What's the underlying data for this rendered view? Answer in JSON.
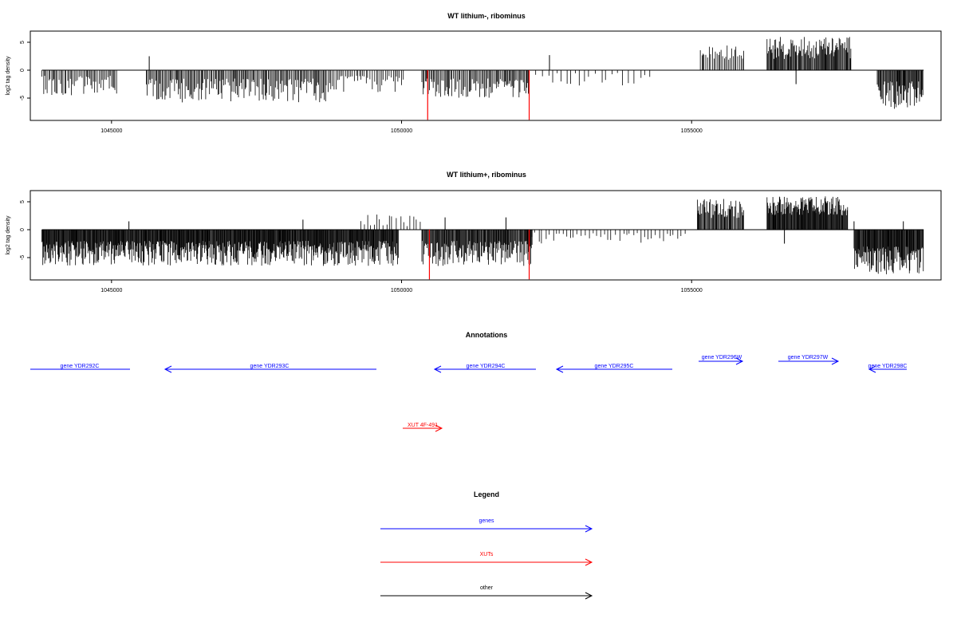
{
  "chart_data": [
    {
      "type": "bar",
      "title": "WT lithium-, ribominus",
      "ylabel": "log2 tag density",
      "xlim": [
        1043600,
        1059300
      ],
      "ylim": [
        -9,
        7
      ],
      "x_ticks": [
        {
          "value": 1045000,
          "label": "1045000"
        },
        {
          "value": 1050000,
          "label": "1050000"
        },
        {
          "value": 1055000,
          "label": "1055000"
        }
      ],
      "y_ticks": [
        {
          "value": -5,
          "label": "-5"
        },
        {
          "value": 0,
          "label": "0"
        },
        {
          "value": 5,
          "label": "5"
        }
      ],
      "series_color": "#000000",
      "highlight_color": "#ff0000",
      "segments": [
        {
          "x0": 1043800,
          "x1": 1045100,
          "lo": -4.5,
          "hi": -1.0,
          "gap": 25
        },
        {
          "x0": 1045600,
          "x1": 1048700,
          "lo": -5.8,
          "hi": -1.5,
          "gap": 20
        },
        {
          "x0": 1048700,
          "x1": 1050050,
          "lo": -4.0,
          "hi": -1.0,
          "gap": 30
        },
        {
          "x0": 1050350,
          "x1": 1050560,
          "lo": -4.5,
          "hi": -1.5,
          "gap": 18
        },
        {
          "x0": 1050560,
          "x1": 1052200,
          "lo": -5.0,
          "hi": -1.5,
          "gap": 20
        },
        {
          "x0": 1052200,
          "x1": 1054300,
          "lo": -3.0,
          "hi": -0.5,
          "gap": 90
        },
        {
          "x0": 1055150,
          "x1": 1055900,
          "lo": 1.5,
          "hi": 4.5,
          "gap": 25
        },
        {
          "x0": 1056300,
          "x1": 1057750,
          "lo": 2.0,
          "hi": 6.0,
          "gap": 14
        },
        {
          "x0": 1058200,
          "x1": 1059000,
          "lo": -7.0,
          "hi": -2.0,
          "gap": 12
        }
      ],
      "spikes": [
        {
          "x": 1045650,
          "y": 2.5
        },
        {
          "x": 1052550,
          "y": 2.7
        },
        {
          "x": 1056800,
          "y": -2.5
        }
      ],
      "highlights": [
        {
          "x": 1050450,
          "y": -8.9
        },
        {
          "x": 1052200,
          "y": -8.9
        }
      ]
    },
    {
      "type": "bar",
      "title": "WT lithium+, ribominus",
      "ylabel": "log2 tag density",
      "xlim": [
        1043600,
        1059300
      ],
      "ylim": [
        -9,
        7
      ],
      "x_ticks": [
        {
          "value": 1045000,
          "label": "1045000"
        },
        {
          "value": 1050000,
          "label": "1050000"
        },
        {
          "value": 1055000,
          "label": "1055000"
        }
      ],
      "y_ticks": [
        {
          "value": -5,
          "label": "-5"
        },
        {
          "value": 0,
          "label": "0"
        },
        {
          "value": 5,
          "label": "5"
        }
      ],
      "series_color": "#000000",
      "highlight_color": "#ff0000",
      "segments": [
        {
          "x0": 1043800,
          "x1": 1049950,
          "lo": -6.5,
          "hi": -2.0,
          "gap": 10
        },
        {
          "x0": 1049300,
          "x1": 1050350,
          "lo": 0.5,
          "hi": 2.8,
          "gap": 60
        },
        {
          "x0": 1050350,
          "x1": 1052250,
          "lo": -6.5,
          "hi": -2.0,
          "gap": 12
        },
        {
          "x0": 1052250,
          "x1": 1054900,
          "lo": -2.5,
          "hi": -0.5,
          "gap": 60
        },
        {
          "x0": 1055100,
          "x1": 1055900,
          "lo": 2.0,
          "hi": 5.5,
          "gap": 14
        },
        {
          "x0": 1056300,
          "x1": 1057700,
          "lo": 2.5,
          "hi": 6.0,
          "gap": 10
        },
        {
          "x0": 1057800,
          "x1": 1059000,
          "lo": -8.0,
          "hi": -3.0,
          "gap": 10
        }
      ],
      "spikes": [
        {
          "x": 1045300,
          "y": 1.5
        },
        {
          "x": 1048300,
          "y": 1.8
        },
        {
          "x": 1050750,
          "y": 2.2
        },
        {
          "x": 1051800,
          "y": 2.2
        },
        {
          "x": 1056600,
          "y": -2.5
        },
        {
          "x": 1057800,
          "y": 1.5
        },
        {
          "x": 1058650,
          "y": 1.5
        }
      ],
      "highlights": [
        {
          "x": 1050480,
          "y": -8.9
        },
        {
          "x": 1052200,
          "y": -8.9
        }
      ]
    }
  ],
  "annotations": {
    "title": "Annotations",
    "genes": [
      {
        "label": "gene YDR292C",
        "direction": "left",
        "row": "main"
      },
      {
        "label": "gene YDR293C",
        "direction": "left",
        "row": "main"
      },
      {
        "label": "gene YDR294C",
        "direction": "left",
        "row": "main"
      },
      {
        "label": "gene YDR295C",
        "direction": "left",
        "row": "main"
      },
      {
        "label": "gene YDR296W",
        "direction": "right",
        "row": "upper"
      },
      {
        "label": "gene YDR297W",
        "direction": "right",
        "row": "upper"
      },
      {
        "label": "gene YDR298C",
        "direction": "left",
        "row": "main"
      }
    ],
    "xuts": [
      {
        "label": "XUT 4F-491",
        "direction": "right"
      }
    ]
  },
  "legend": {
    "title": "Legend",
    "items": [
      {
        "label": "genes",
        "color": "#0000ff"
      },
      {
        "label": "XUTs",
        "color": "#ff0000"
      },
      {
        "label": "other",
        "color": "#000000"
      }
    ]
  },
  "colors": {
    "gene": "#0000ff",
    "xut": "#ff0000",
    "other": "#000000"
  }
}
